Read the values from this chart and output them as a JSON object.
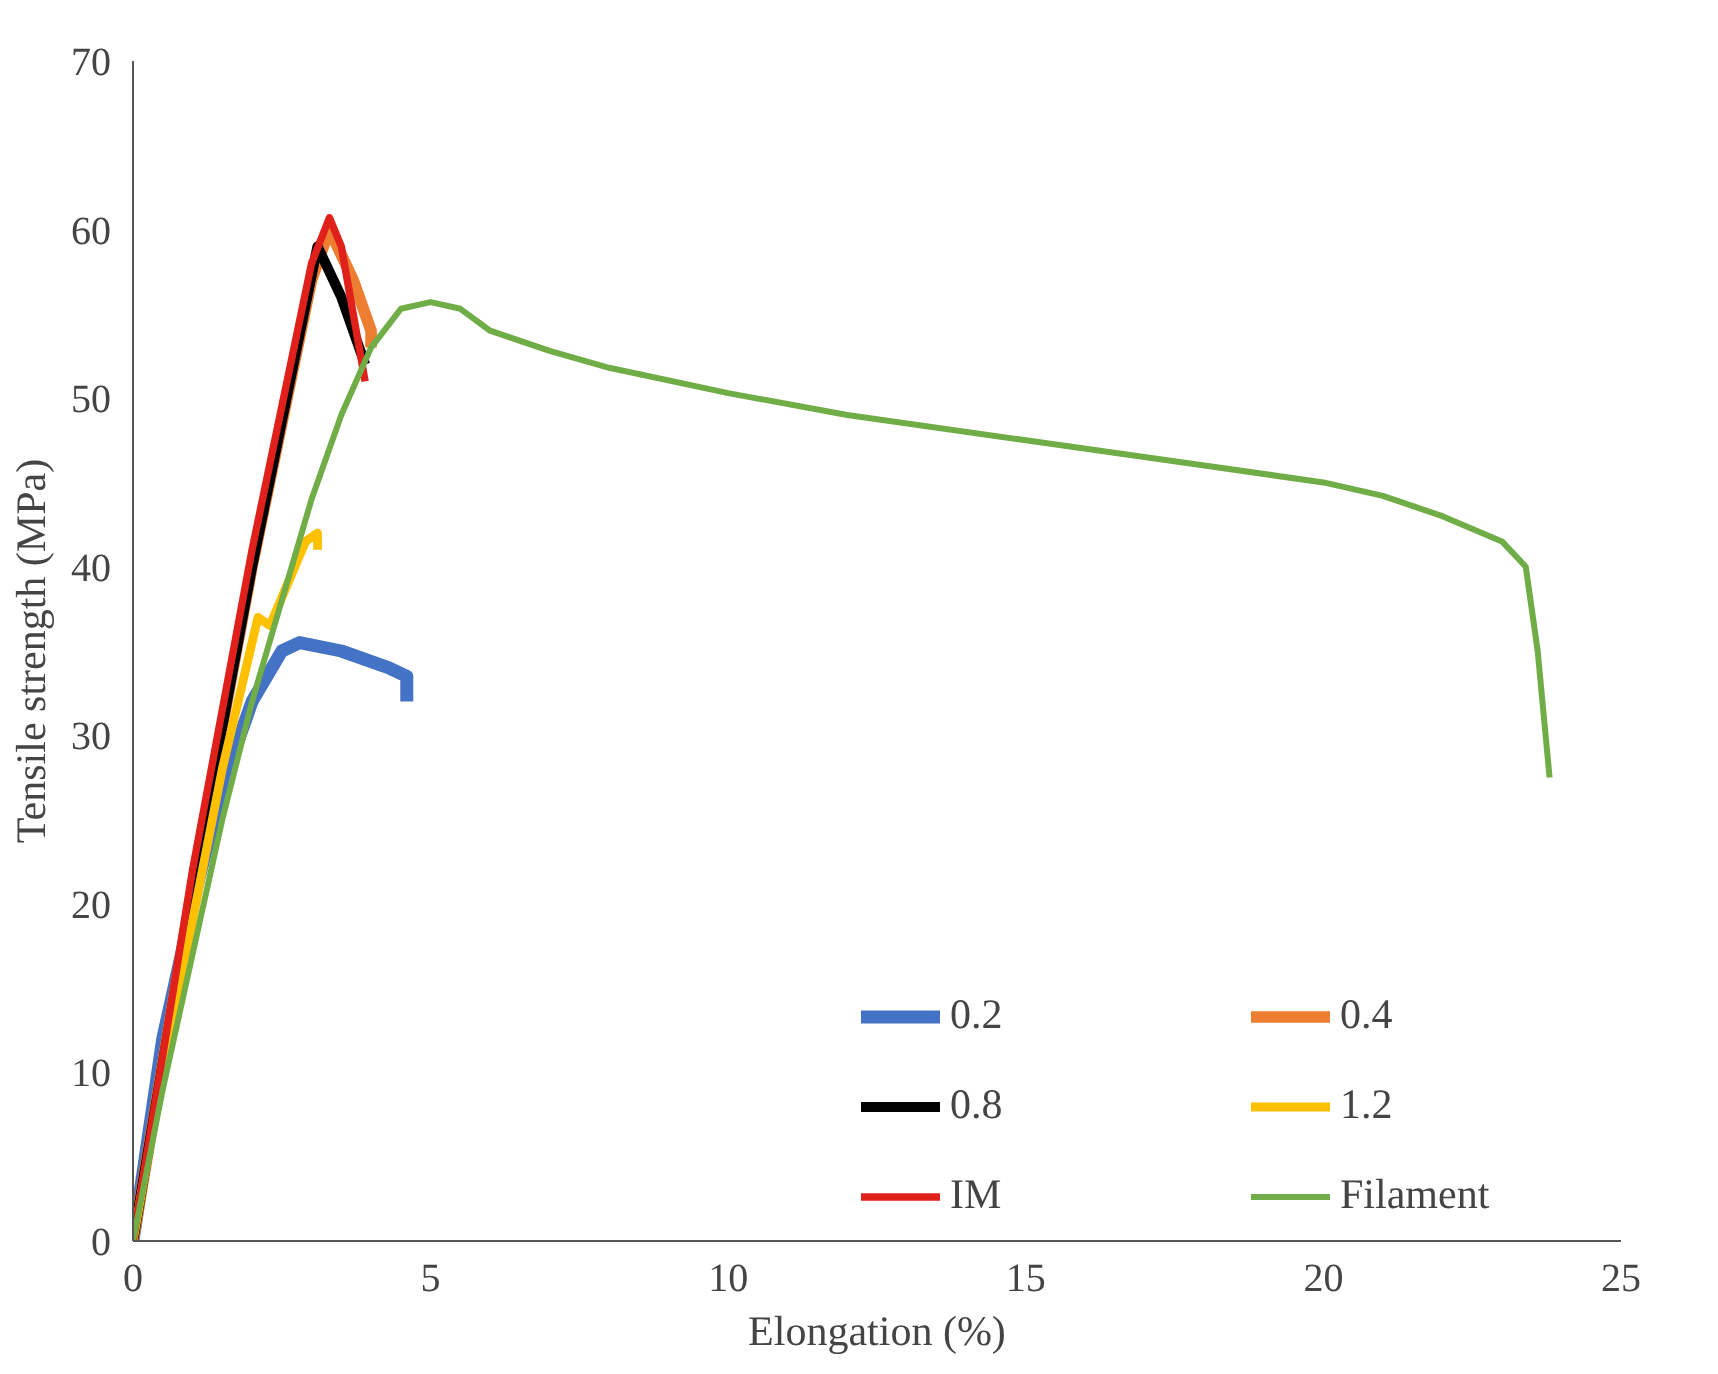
{
  "chart_data": {
    "type": "line",
    "xlabel": "Elongation (%)",
    "ylabel": "Tensile strength (MPa)",
    "xlim": [
      0,
      25
    ],
    "ylim": [
      0,
      70
    ],
    "xticks": [
      0,
      5,
      10,
      15,
      20,
      25
    ],
    "yticks": [
      0,
      10,
      20,
      30,
      40,
      50,
      60,
      70
    ],
    "grid": false,
    "legend": "bottom right",
    "line_style": "solid",
    "marker": "none",
    "series": [
      {
        "name": "0.2",
        "color": "#4472c4",
        "x": [
          0,
          0.5,
          1,
          1.5,
          2,
          2.5,
          2.8,
          3.5,
          4.3,
          4.6,
          4.6
        ],
        "values": [
          0,
          12,
          20,
          27,
          32,
          35,
          35.5,
          35,
          34,
          33.5,
          32
        ]
      },
      {
        "name": "0.4",
        "color": "#ed7d31",
        "x": [
          0,
          1,
          2,
          3,
          3.3,
          3.7,
          4,
          4
        ],
        "values": [
          0,
          21,
          40,
          57,
          60,
          57,
          54,
          53
        ]
      },
      {
        "name": "0.8",
        "color": "#000000",
        "x": [
          0,
          1,
          2,
          3.1,
          3.5,
          3.9
        ],
        "values": [
          0,
          21,
          40,
          59,
          56,
          52
        ]
      },
      {
        "name": "1.2",
        "color": "#ffc000",
        "x": [
          0,
          0.5,
          1,
          1.5,
          2.1,
          2.3,
          2.6,
          2.9,
          3.1,
          3.1
        ],
        "values": [
          0,
          10,
          19,
          28,
          37,
          36.5,
          39,
          41.5,
          42,
          41
        ]
      },
      {
        "name": "IM",
        "color": "#e0201b",
        "x": [
          0,
          1,
          2,
          3,
          3.3,
          3.5,
          3.7,
          3.9
        ],
        "values": [
          0,
          22,
          41,
          58,
          60.7,
          59,
          55,
          51
        ]
      },
      {
        "name": "Filament",
        "color": "#70ad47",
        "x": [
          0,
          0.5,
          1,
          1.5,
          2,
          2.5,
          3,
          3.5,
          4,
          4.5,
          5,
          5.5,
          6,
          7,
          8,
          10,
          12,
          15,
          18,
          20,
          21,
          22,
          23,
          23.4,
          23.6,
          23.8
        ],
        "values": [
          0,
          9,
          17,
          25,
          32,
          38,
          44,
          49,
          53,
          55.3,
          55.7,
          55.3,
          54,
          52.8,
          51.8,
          50.3,
          49,
          47.5,
          46,
          45,
          44.2,
          43,
          41.5,
          40,
          35,
          27.5
        ]
      }
    ]
  }
}
